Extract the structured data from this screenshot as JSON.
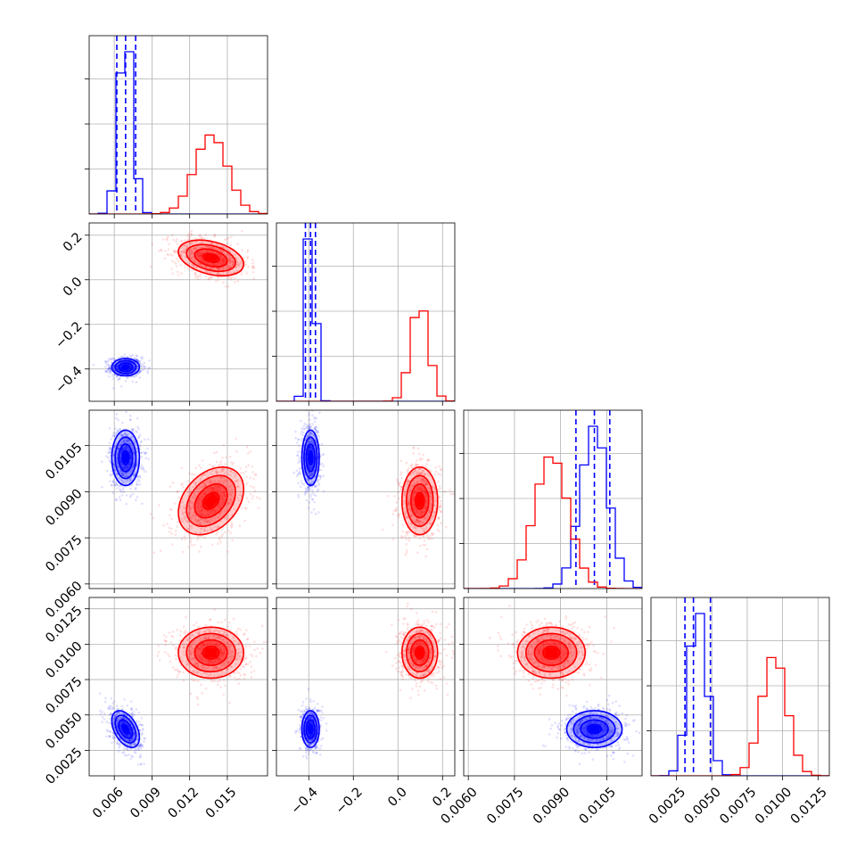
{
  "chart_data": {
    "type": "corner",
    "colors": {
      "blue": "#0000ff",
      "red": "#ff0000",
      "grid": "#b0b0b0"
    },
    "parameters": [
      {
        "range": [
          0.004,
          0.0182
        ],
        "ticks": [
          0.006,
          0.009,
          0.012,
          0.015
        ],
        "tick_labels": [
          "0.006",
          "0.009",
          "0.012",
          "0.015"
        ]
      },
      {
        "range": [
          -0.545,
          0.255
        ],
        "ticks": [
          -0.4,
          -0.2,
          0.0,
          0.2
        ],
        "tick_labels": [
          "−0.4",
          "−0.2",
          "0.0",
          "0.2"
        ]
      },
      {
        "range": [
          0.00585,
          0.01165
        ],
        "ticks": [
          0.006,
          0.0075,
          0.009,
          0.0105
        ],
        "tick_labels": [
          "0.0060",
          "0.0075",
          "0.0090",
          "0.0105"
        ]
      },
      {
        "range": [
          0.0007,
          0.0133
        ],
        "ticks": [
          0.0025,
          0.005,
          0.0075,
          0.01,
          0.0125
        ],
        "tick_labels": [
          "0.0025",
          "0.0050",
          "0.0075",
          "0.0100",
          "0.0125"
        ]
      }
    ],
    "series": [
      {
        "name": "",
        "color": "blue",
        "mean": [
          0.0069,
          -0.392,
          0.0101,
          0.004
        ],
        "sd": [
          0.00055,
          0.0195,
          0.00045,
          0.00065
        ],
        "rho": {
          "0-1": 0.0,
          "0-2": 0.0,
          "0-3": -0.45,
          "1-2": 0.0,
          "1-3": 0.0,
          "2-3": 0.0
        },
        "quantiles": [
          [
            0.0062,
            0.0069,
            0.0077
          ],
          [
            -0.415,
            -0.392,
            -0.37
          ],
          [
            0.0095,
            0.0101,
            0.0106
          ],
          [
            0.0031,
            0.0037,
            0.0049
          ]
        ]
      },
      {
        "name": "",
        "color": "red",
        "mean": [
          0.0137,
          0.098,
          0.0087,
          0.0094
        ],
        "sd": [
          0.0013,
          0.04,
          0.00055,
          0.0009
        ],
        "rho": {
          "0-1": -0.35,
          "0-2": 0.35,
          "0-3": 0.0,
          "1-2": 0.0,
          "1-3": 0.0,
          "2-3": 0.0
        },
        "quantiles": []
      }
    ]
  }
}
